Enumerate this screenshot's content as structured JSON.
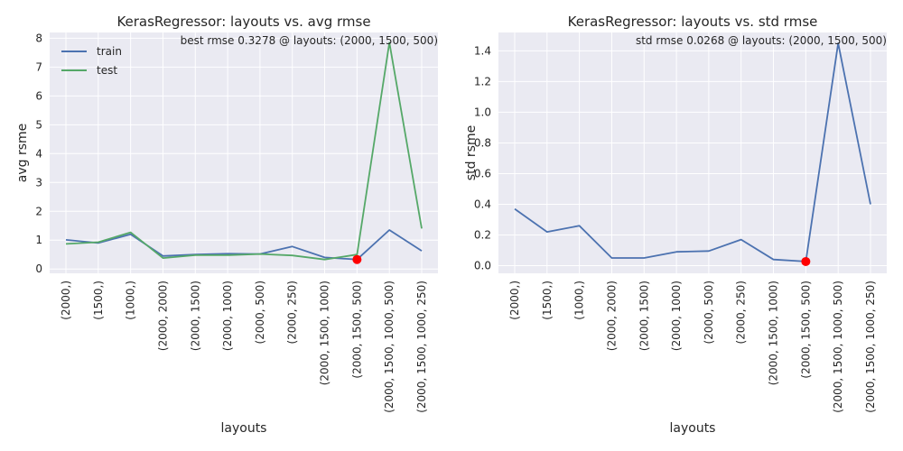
{
  "chart_data": [
    {
      "type": "line",
      "title": "KerasRegressor: layouts vs. avg rmse",
      "xlabel": "layouts",
      "ylabel": "avg rsme",
      "annotation": "best rmse 0.3278 @ layouts: (2000, 1500, 500)",
      "categories": [
        "(2000,)",
        "(1500,)",
        "(1000,)",
        "(2000, 2000)",
        "(2000, 1500)",
        "(2000, 1000)",
        "(2000, 500)",
        "(2000, 250)",
        "(2000, 1500, 1000)",
        "(2000, 1500, 500)",
        "(2000, 1500, 1000, 500)",
        "(2000, 1500, 1000, 250)"
      ],
      "yticks": [
        0,
        1,
        2,
        3,
        4,
        5,
        6,
        7,
        8
      ],
      "ylim": [
        -0.15,
        8.2
      ],
      "grid": true,
      "legend": "upper-left",
      "series": [
        {
          "name": "train",
          "color": "#4c72b0",
          "values": [
            1.01,
            0.9,
            1.2,
            0.45,
            0.5,
            0.53,
            0.52,
            0.78,
            0.4,
            0.33,
            1.35,
            0.63
          ]
        },
        {
          "name": "test",
          "color": "#55a868",
          "values": [
            0.87,
            0.93,
            1.27,
            0.38,
            0.48,
            0.48,
            0.52,
            0.47,
            0.33,
            0.5,
            7.85,
            1.4
          ]
        }
      ],
      "highlight": {
        "index": 9,
        "value": 0.3278,
        "color": "#ff0000"
      }
    },
    {
      "type": "line",
      "title": "KerasRegressor: layouts vs. std rmse",
      "xlabel": "layouts",
      "ylabel": "std rsme",
      "annotation": "std rmse 0.0268 @ layouts: (2000, 1500, 500)",
      "categories": [
        "(2000,)",
        "(1500,)",
        "(1000,)",
        "(2000, 2000)",
        "(2000, 1500)",
        "(2000, 1000)",
        "(2000, 500)",
        "(2000, 250)",
        "(2000, 1500, 1000)",
        "(2000, 1500, 500)",
        "(2000, 1500, 1000, 500)",
        "(2000, 1500, 1000, 250)"
      ],
      "yticks": [
        "0.0",
        "0.2",
        "0.4",
        "0.6",
        "0.8",
        "1.0",
        "1.2",
        "1.4"
      ],
      "ylim": [
        -0.05,
        1.52
      ],
      "grid": true,
      "series": [
        {
          "color": "#4c72b0",
          "values": [
            0.37,
            0.22,
            0.26,
            0.05,
            0.05,
            0.09,
            0.095,
            0.17,
            0.04,
            0.0268,
            1.45,
            0.4
          ]
        }
      ],
      "highlight": {
        "index": 9,
        "value": 0.0268,
        "color": "#ff0000"
      }
    }
  ]
}
